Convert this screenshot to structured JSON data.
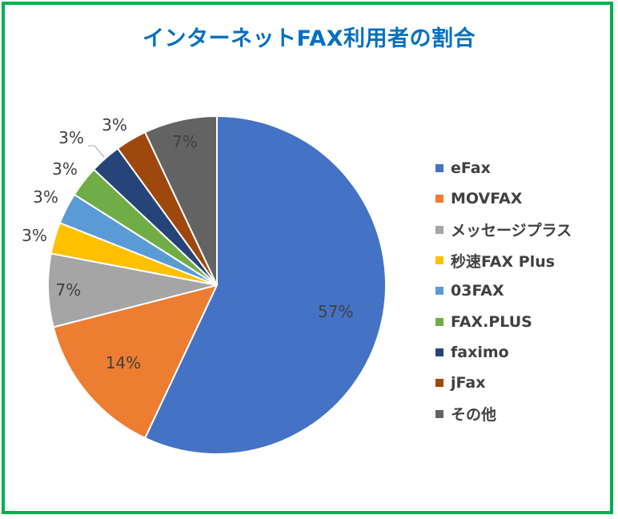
{
  "chart_data": {
    "type": "pie",
    "title": "インターネットFAX利用者の割合",
    "categories": [
      "eFax",
      "MOVFAX",
      "メッセージプラス",
      "秒速FAX Plus",
      "03FAX",
      "FAX.PLUS",
      "faximo",
      "jFax",
      "その他"
    ],
    "values": [
      57,
      14,
      7,
      3,
      3,
      3,
      3,
      3,
      7
    ],
    "data_labels": [
      "57%",
      "14%",
      "7%",
      "3%",
      "3%",
      "3%",
      "3%",
      "3%",
      "7%"
    ],
    "colors": [
      "#4472c4",
      "#ed7d31",
      "#a5a5a5",
      "#ffc000",
      "#5b9bd5",
      "#70ad47",
      "#264478",
      "#9e480e",
      "#636363"
    ],
    "legend_position": "right"
  },
  "frame_color": "#00b050",
  "title_color": "#0070c0"
}
